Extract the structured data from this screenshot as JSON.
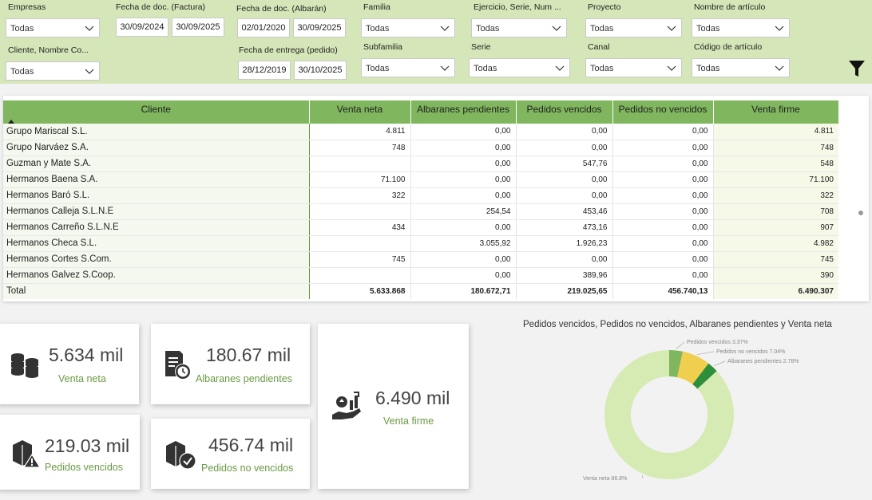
{
  "filters": {
    "empresas": {
      "label": "Empresas",
      "value": "Todas"
    },
    "cliente": {
      "label": "Cliente, Nombre Co...",
      "value": "Todas"
    },
    "fecha_factura": {
      "label": "Fecha de doc. (Factura)",
      "from": "30/09/2024",
      "to": "30/09/2025"
    },
    "fecha_albaran": {
      "label": "Fecha de doc. (Albarán)",
      "from": "02/01/2020",
      "to": "30/09/2025"
    },
    "fecha_entrega": {
      "label": "Fecha de entrega (pedido)",
      "from": "28/12/2019",
      "to": "30/10/2025"
    },
    "familia": {
      "label": "Familia",
      "value": "Todas"
    },
    "subfamilia": {
      "label": "Subfamilia",
      "value": "Todas"
    },
    "ejercicio": {
      "label": "Ejercicio, Serie, Num ...",
      "value": "Todas"
    },
    "serie": {
      "label": "Serie",
      "value": "Todas"
    },
    "proyecto": {
      "label": "Proyecto",
      "value": "Todas"
    },
    "canal": {
      "label": "Canal",
      "value": "Todas"
    },
    "nombre_articulo": {
      "label": "Nombre de artículo",
      "value": "Todas"
    },
    "codigo_articulo": {
      "label": "Código de artículo",
      "value": "Todas"
    }
  },
  "table": {
    "headers": [
      "Cliente",
      "Venta neta",
      "Albaranes pendientes",
      "Pedidos vencidos",
      "Pedidos no vencidos",
      "Venta firme"
    ],
    "rows": [
      {
        "cliente": "Grupo Mariscal S.L.",
        "venta_neta": "4.811",
        "albaranes": "0,00",
        "vencidos": "0,00",
        "no_vencidos": "0,00",
        "firme": "4.811"
      },
      {
        "cliente": "Grupo Narváez S.A.",
        "venta_neta": "748",
        "albaranes": "0,00",
        "vencidos": "0,00",
        "no_vencidos": "0,00",
        "firme": "748"
      },
      {
        "cliente": "Guzman y Mate S.A.",
        "venta_neta": "",
        "albaranes": "0,00",
        "vencidos": "547,76",
        "no_vencidos": "0,00",
        "firme": "548"
      },
      {
        "cliente": "Hermanos Baena S.A.",
        "venta_neta": "71.100",
        "albaranes": "0,00",
        "vencidos": "0,00",
        "no_vencidos": "0,00",
        "firme": "71.100"
      },
      {
        "cliente": "Hermanos Baró S.L.",
        "venta_neta": "322",
        "albaranes": "0,00",
        "vencidos": "0,00",
        "no_vencidos": "0,00",
        "firme": "322"
      },
      {
        "cliente": "Hermanos Calleja S.L.N.E",
        "venta_neta": "",
        "albaranes": "254,54",
        "vencidos": "453,46",
        "no_vencidos": "0,00",
        "firme": "708"
      },
      {
        "cliente": "Hermanos Carreño S.L.N.E",
        "venta_neta": "434",
        "albaranes": "0,00",
        "vencidos": "473,16",
        "no_vencidos": "0,00",
        "firme": "907"
      },
      {
        "cliente": "Hermanos Checa S.L.",
        "venta_neta": "",
        "albaranes": "3.055,92",
        "vencidos": "1.926,23",
        "no_vencidos": "0,00",
        "firme": "4.982"
      },
      {
        "cliente": "Hermanos Cortes S.Com.",
        "venta_neta": "745",
        "albaranes": "0,00",
        "vencidos": "0,00",
        "no_vencidos": "0,00",
        "firme": "745"
      },
      {
        "cliente": "Hermanos Galvez S.Coop.",
        "venta_neta": "",
        "albaranes": "0,00",
        "vencidos": "389,96",
        "no_vencidos": "0,00",
        "firme": "390"
      }
    ],
    "total": {
      "cliente": "Total",
      "venta_neta": "5.633.868",
      "albaranes": "180.672,71",
      "vencidos": "219.025,65",
      "no_vencidos": "456.740,13",
      "firme": "6.490.307"
    }
  },
  "kpis": {
    "venta_neta": {
      "value": "5.634 mil",
      "label": "Venta neta",
      "icon": "coins-stack-icon"
    },
    "albaranes": {
      "value": "180.67 mil",
      "label": "Albaranes pendientes",
      "icon": "document-clock-icon"
    },
    "venta_firme": {
      "value": "6.490 mil",
      "label": "Venta firme",
      "icon": "hand-growth-icon"
    },
    "vencidos": {
      "value": "219.03 mil",
      "label": "Pedidos vencidos",
      "icon": "box-warning-icon"
    },
    "no_vencidos": {
      "value": "456.74 mil",
      "label": "Pedidos no vencidos",
      "icon": "box-check-icon"
    }
  },
  "chart_data": {
    "type": "pie",
    "title": "Pedidos vencidos, Pedidos no vencidos, Albaranes pendientes y Venta neta",
    "slices": [
      {
        "name": "Pedidos vencidos",
        "value": 3.37,
        "label": "Pedidos vencidos 3.37%",
        "color": "#7fb65e"
      },
      {
        "name": "Pedidos no vencidos",
        "value": 7.04,
        "label": "Pedidos no vencidos 7.04%",
        "color": "#f0cf4e"
      },
      {
        "name": "Albaranes pendientes",
        "value": 2.78,
        "label": "Albaranes pendientes 2.78%",
        "color": "#2e8f3a"
      },
      {
        "name": "Venta neta",
        "value": 86.8,
        "label": "Venta neta 86.8%",
        "color": "#d5ebb3"
      }
    ]
  }
}
